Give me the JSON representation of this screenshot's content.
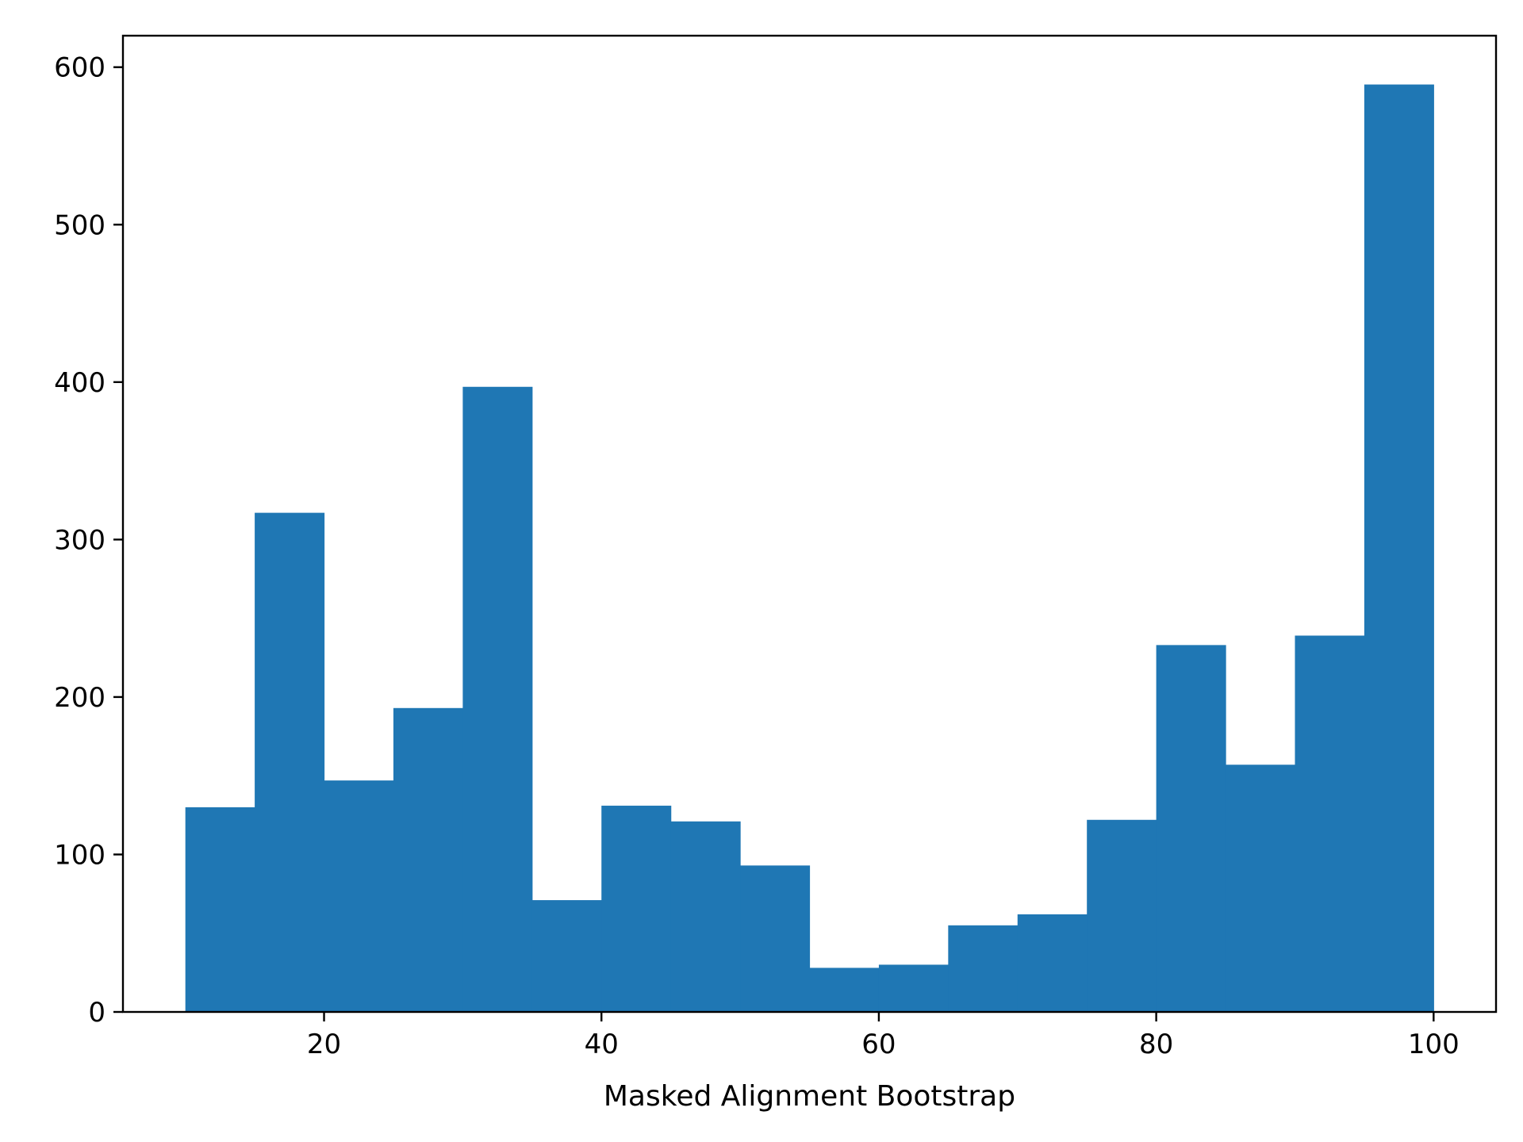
{
  "chart_data": {
    "type": "bar",
    "title": "",
    "xlabel": "Masked Alignment Bootstrap",
    "ylabel": "",
    "xlim": [
      5.5,
      104.5
    ],
    "ylim": [
      0,
      620
    ],
    "x_ticks": [
      20,
      40,
      60,
      80,
      100
    ],
    "y_ticks": [
      0,
      100,
      200,
      300,
      400,
      500,
      600
    ],
    "x_tick_labels": [
      "20",
      "40",
      "60",
      "80",
      "100"
    ],
    "y_tick_labels": [
      "0",
      "100",
      "200",
      "300",
      "400",
      "500",
      "600"
    ],
    "grid": false,
    "bar_color": "#1f77b4",
    "bins": [
      {
        "x0": 10,
        "x1": 15,
        "count": 130
      },
      {
        "x0": 15,
        "x1": 20,
        "count": 317
      },
      {
        "x0": 20,
        "x1": 25,
        "count": 147
      },
      {
        "x0": 25,
        "x1": 30,
        "count": 193
      },
      {
        "x0": 30,
        "x1": 35,
        "count": 397
      },
      {
        "x0": 35,
        "x1": 40,
        "count": 71
      },
      {
        "x0": 40,
        "x1": 45,
        "count": 131
      },
      {
        "x0": 45,
        "x1": 50,
        "count": 121
      },
      {
        "x0": 50,
        "x1": 55,
        "count": 93
      },
      {
        "x0": 55,
        "x1": 60,
        "count": 28
      },
      {
        "x0": 60,
        "x1": 65,
        "count": 30
      },
      {
        "x0": 65,
        "x1": 70,
        "count": 55
      },
      {
        "x0": 70,
        "x1": 75,
        "count": 62
      },
      {
        "x0": 75,
        "x1": 80,
        "count": 122
      },
      {
        "x0": 80,
        "x1": 85,
        "count": 233
      },
      {
        "x0": 85,
        "x1": 90,
        "count": 157
      },
      {
        "x0": 90,
        "x1": 95,
        "count": 239
      },
      {
        "x0": 95,
        "x1": 100,
        "count": 589
      }
    ]
  }
}
